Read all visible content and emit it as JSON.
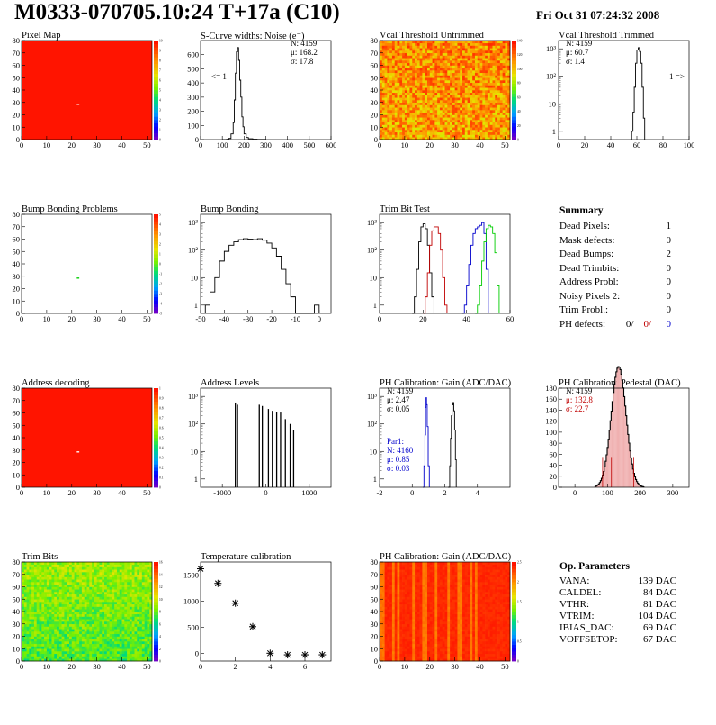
{
  "header": {
    "title": "M0333-070705.10:24 T+17a (C10)",
    "date": "Fri Oct 31 07:24:32 2008"
  },
  "chart_data": [
    {
      "id": "pixel-map",
      "type": "heatmap",
      "title": "Pixel Map",
      "xlim": [
        0,
        52
      ],
      "ylim": [
        0,
        80
      ],
      "xticks": [
        "0",
        "10",
        "20",
        "30",
        "40",
        "50"
      ],
      "yticks": [
        "0",
        "10",
        "20",
        "30",
        "40",
        "50",
        "60",
        "70",
        "80"
      ],
      "zmax": 10,
      "zticks": [
        "0",
        "1",
        "2",
        "3",
        "4",
        "5",
        "6",
        "7",
        "8",
        "9",
        "10"
      ],
      "fill": "uniform-red",
      "dead": [
        [
          22,
          28
        ]
      ]
    },
    {
      "id": "scurve",
      "type": "line",
      "title": "S-Curve widths: Noise (e⁻)",
      "xlim": [
        0,
        600
      ],
      "ylim": [
        0,
        700
      ],
      "xticks": [
        "0",
        "100",
        "200",
        "300",
        "400",
        "500",
        "600"
      ],
      "yticks": [
        "0",
        "100",
        "200",
        "300",
        "400",
        "500",
        "600"
      ],
      "stats": [
        "N: 4159",
        "μ: 168.2",
        "σ: 17.8"
      ],
      "annotation": "<= 1",
      "x": [
        100,
        120,
        130,
        140,
        150,
        155,
        160,
        165,
        170,
        175,
        180,
        185,
        190,
        195,
        200,
        210,
        220,
        240,
        260,
        300
      ],
      "values": [
        0,
        2,
        8,
        40,
        120,
        280,
        470,
        620,
        650,
        560,
        420,
        300,
        160,
        90,
        40,
        15,
        6,
        3,
        1,
        0
      ]
    },
    {
      "id": "vcal-untrimmed",
      "type": "heatmap",
      "title": "Vcal Threshold Untrimmed",
      "xlim": [
        0,
        52
      ],
      "ylim": [
        0,
        80
      ],
      "xticks": [
        "0",
        "10",
        "20",
        "30",
        "40",
        "50"
      ],
      "yticks": [
        "0",
        "10",
        "20",
        "30",
        "40",
        "50",
        "60",
        "70",
        "80"
      ],
      "zmax": 140,
      "zticks": [
        "0",
        "20",
        "40",
        "60",
        "80",
        "100",
        "120",
        "140"
      ],
      "fill": "noisy-orange"
    },
    {
      "id": "vcal-trimmed",
      "type": "line",
      "title": "Vcal Threshold Trimmed",
      "xlim": [
        0,
        100
      ],
      "ylim": [
        0.5,
        2000
      ],
      "log": true,
      "xticks": [
        "0",
        "20",
        "40",
        "60",
        "80",
        "100"
      ],
      "yticks": [
        "1",
        "10",
        "10²",
        "10³"
      ],
      "stats": [
        "N: 4159",
        "μ: 60.7",
        "σ: 1.4"
      ],
      "annotation": "1 =>",
      "x": [
        55,
        56,
        57,
        58,
        59,
        60,
        61,
        62,
        63,
        64,
        65,
        66
      ],
      "values": [
        0,
        1,
        5,
        40,
        300,
        900,
        1100,
        800,
        300,
        40,
        3,
        0
      ]
    },
    {
      "id": "bump-map",
      "type": "heatmap",
      "title": "Bump Bonding Problems",
      "xlim": [
        0,
        52
      ],
      "ylim": [
        0,
        80
      ],
      "xticks": [
        "0",
        "10",
        "20",
        "30",
        "40",
        "50"
      ],
      "yticks": [
        "0",
        "10",
        "20",
        "30",
        "40",
        "50",
        "60",
        "70",
        "80"
      ],
      "zmin": -5,
      "zmax": 5,
      "zticks": [
        "-5",
        "-4",
        "-3",
        "-2",
        "-1",
        "0",
        "1",
        "2",
        "3",
        "4",
        "5"
      ],
      "fill": "empty",
      "dead": [
        [
          22,
          28
        ]
      ]
    },
    {
      "id": "bump-bonding",
      "type": "line",
      "title": "Bump Bonding",
      "xlim": [
        -50,
        5
      ],
      "ylim": [
        0.5,
        2000
      ],
      "log": true,
      "xticks": [
        "-50",
        "-40",
        "-30",
        "-20",
        "-10",
        "0"
      ],
      "yticks": [
        "1",
        "10",
        "10²",
        "10³"
      ],
      "x": [
        -48,
        -46,
        -44,
        -42,
        -40,
        -38,
        -36,
        -34,
        -32,
        -30,
        -28,
        -26,
        -24,
        -22,
        -20,
        -18,
        -16,
        -14,
        -12,
        -10,
        -2,
        0
      ],
      "values": [
        1,
        3,
        10,
        40,
        90,
        150,
        200,
        240,
        260,
        250,
        240,
        260,
        230,
        180,
        120,
        60,
        20,
        6,
        2,
        0.5,
        1,
        0.5
      ]
    },
    {
      "id": "trim-bit-test",
      "type": "line",
      "title": "Trim Bit Test",
      "xlim": [
        0,
        60
      ],
      "ylim": [
        0.5,
        2000
      ],
      "log": true,
      "xticks": [
        "0",
        "20",
        "40",
        "60"
      ],
      "yticks": [
        "1",
        "10",
        "10²",
        "10³"
      ],
      "series": [
        {
          "color": "#000000",
          "x": [
            15,
            16,
            17,
            18,
            19,
            20,
            21,
            22,
            23,
            24,
            25
          ],
          "values": [
            0.5,
            2,
            20,
            200,
            700,
            900,
            600,
            150,
            15,
            2,
            0.5
          ]
        },
        {
          "color": "#c00000",
          "x": [
            20,
            21,
            22,
            23,
            24,
            25,
            26,
            27,
            28,
            29,
            30,
            31
          ],
          "values": [
            0.5,
            2,
            15,
            150,
            500,
            700,
            700,
            400,
            100,
            10,
            1,
            0.5
          ]
        },
        {
          "color": "#0000cc",
          "x": [
            38,
            39,
            40,
            41,
            42,
            43,
            44,
            45,
            46,
            47,
            48,
            49,
            50
          ],
          "values": [
            0.5,
            1,
            5,
            30,
            150,
            400,
            600,
            700,
            800,
            1000,
            400,
            20,
            0.5
          ]
        },
        {
          "color": "#00cc00",
          "x": [
            44,
            45,
            46,
            47,
            48,
            49,
            50,
            51,
            52,
            53,
            54,
            55
          ],
          "values": [
            0.5,
            1,
            5,
            40,
            200,
            600,
            800,
            700,
            400,
            80,
            5,
            0.5
          ]
        }
      ]
    },
    {
      "id": "addr-decoding",
      "type": "heatmap",
      "title": "Address decoding",
      "xlim": [
        0,
        52
      ],
      "ylim": [
        0,
        80
      ],
      "xticks": [
        "0",
        "10",
        "20",
        "30",
        "40",
        "50"
      ],
      "yticks": [
        "0",
        "10",
        "20",
        "30",
        "40",
        "50",
        "60",
        "70",
        "80"
      ],
      "zmax": 1,
      "zticks": [
        "0",
        "0.1",
        "0.2",
        "0.3",
        "0.4",
        "0.5",
        "0.6",
        "0.7",
        "0.8",
        "0.9",
        "1"
      ],
      "fill": "uniform-red",
      "dead": [
        [
          22,
          28
        ]
      ]
    },
    {
      "id": "addr-levels",
      "type": "line",
      "title": "Address Levels",
      "xlim": [
        -1500,
        1500
      ],
      "ylim": [
        0.5,
        2000
      ],
      "log": true,
      "xticks": [
        "-1000",
        "0",
        "1000"
      ],
      "yticks": [
        "1",
        "10",
        "10²",
        "10³"
      ],
      "peaks": [
        [
          -700,
          600
        ],
        [
          -650,
          500
        ],
        [
          -150,
          500
        ],
        [
          -80,
          450
        ],
        [
          60,
          350
        ],
        [
          150,
          300
        ],
        [
          250,
          280
        ],
        [
          340,
          260
        ],
        [
          450,
          150
        ],
        [
          560,
          100
        ],
        [
          640,
          60
        ]
      ]
    },
    {
      "id": "ph-gain",
      "type": "line",
      "title": "PH Calibration: Gain (ADC/DAC)",
      "xlim": [
        -2,
        6
      ],
      "ylim": [
        0.5,
        2000
      ],
      "log": true,
      "xticks": [
        "-2",
        "0",
        "2",
        "4"
      ],
      "yticks": [
        "1",
        "10",
        "10²",
        "10³"
      ],
      "stats": [
        "N: 4159",
        "μ: 2.47",
        "σ: 0.05"
      ],
      "stats2": [
        "Par1:",
        "N: 4160",
        "μ: 0.85",
        "σ: 0.03"
      ],
      "series": [
        {
          "color": "#000000",
          "x": [
            2.2,
            2.3,
            2.35,
            2.4,
            2.45,
            2.5,
            2.55,
            2.6,
            2.65,
            2.7
          ],
          "values": [
            0.5,
            3,
            30,
            200,
            500,
            600,
            300,
            60,
            5,
            0.5
          ]
        },
        {
          "color": "#0000cc",
          "x": [
            0.65,
            0.72,
            0.78,
            0.82,
            0.85,
            0.88,
            0.92,
            0.98,
            1.05
          ],
          "values": [
            0.5,
            3,
            40,
            400,
            900,
            500,
            80,
            3,
            0.5
          ]
        }
      ]
    },
    {
      "id": "ph-pedestal",
      "type": "bar",
      "title": "PH Calibration: Pedestal (DAC)",
      "xlim": [
        -50,
        350
      ],
      "ylim": [
        0,
        180
      ],
      "xticks": [
        "0",
        "100",
        "200",
        "300"
      ],
      "yticks": [
        "0",
        "20",
        "40",
        "60",
        "80",
        "100",
        "120",
        "140",
        "160",
        "180"
      ],
      "stats": [
        "N: 4159",
        "μ: 132.8",
        "σ: 22.7"
      ],
      "markers": [
        85,
        112,
        180
      ]
    },
    {
      "id": "trim-bits",
      "type": "heatmap",
      "title": "Trim Bits",
      "xlim": [
        0,
        52
      ],
      "ylim": [
        0,
        80
      ],
      "xticks": [
        "0",
        "10",
        "20",
        "30",
        "40",
        "50"
      ],
      "yticks": [
        "0",
        "10",
        "20",
        "30",
        "40",
        "50",
        "60",
        "70",
        "80"
      ],
      "zmax": 16,
      "zticks": [
        "0",
        "2",
        "4",
        "6",
        "8",
        "10",
        "12",
        "14",
        "16"
      ],
      "fill": "noisy-green"
    },
    {
      "id": "temp-cal",
      "type": "scatter",
      "title": "Temperature calibration",
      "xlim": [
        0,
        7.5
      ],
      "ylim": [
        -150,
        1750
      ],
      "xticks": [
        "0",
        "2",
        "4",
        "6"
      ],
      "yticks": [
        "0",
        "500",
        "1000",
        "1500"
      ],
      "x": [
        0,
        1,
        2,
        3,
        4,
        5,
        6,
        7
      ],
      "values": [
        1620,
        1340,
        960,
        510,
        0,
        -30,
        -30,
        -30
      ]
    },
    {
      "id": "ph-gain-map",
      "type": "heatmap",
      "title": "PH Calibration: Gain (ADC/DAC)",
      "xlim": [
        0,
        52
      ],
      "ylim": [
        0,
        80
      ],
      "xticks": [
        "0",
        "10",
        "20",
        "30",
        "40",
        "50"
      ],
      "yticks": [
        "0",
        "10",
        "20",
        "30",
        "40",
        "50",
        "60",
        "70",
        "80"
      ],
      "zmax": 2.5,
      "zticks": [
        "0",
        "0.5",
        "1",
        "1.5",
        "2",
        "2.5"
      ],
      "fill": "column-red"
    }
  ],
  "summary": {
    "title": "Summary",
    "rows": [
      {
        "label": "Dead Pixels:",
        "value": "1"
      },
      {
        "label": "Mask defects:",
        "value": "0"
      },
      {
        "label": "Dead Bumps:",
        "value": "2"
      },
      {
        "label": "Dead Trimbits:",
        "value": "0"
      },
      {
        "label": "Address Probl:",
        "value": "0"
      },
      {
        "label": "Noisy Pixels 2:",
        "value": "0"
      },
      {
        "label": "Trim Probl.:",
        "value": "0"
      }
    ],
    "ph_label": "PH defects:",
    "ph_values": [
      "0/",
      "0/",
      "0"
    ]
  },
  "params": {
    "title": "Op. Parameters",
    "rows": [
      {
        "label": "VANA:",
        "value": "139 DAC"
      },
      {
        "label": "CALDEL:",
        "value": "84 DAC"
      },
      {
        "label": "VTHR:",
        "value": "81 DAC"
      },
      {
        "label": "VTRIM:",
        "value": "104 DAC"
      },
      {
        "label": "IBIAS_DAC:",
        "value": "69 DAC"
      },
      {
        "label": "VOFFSETOP:",
        "value": "67 DAC"
      }
    ]
  }
}
